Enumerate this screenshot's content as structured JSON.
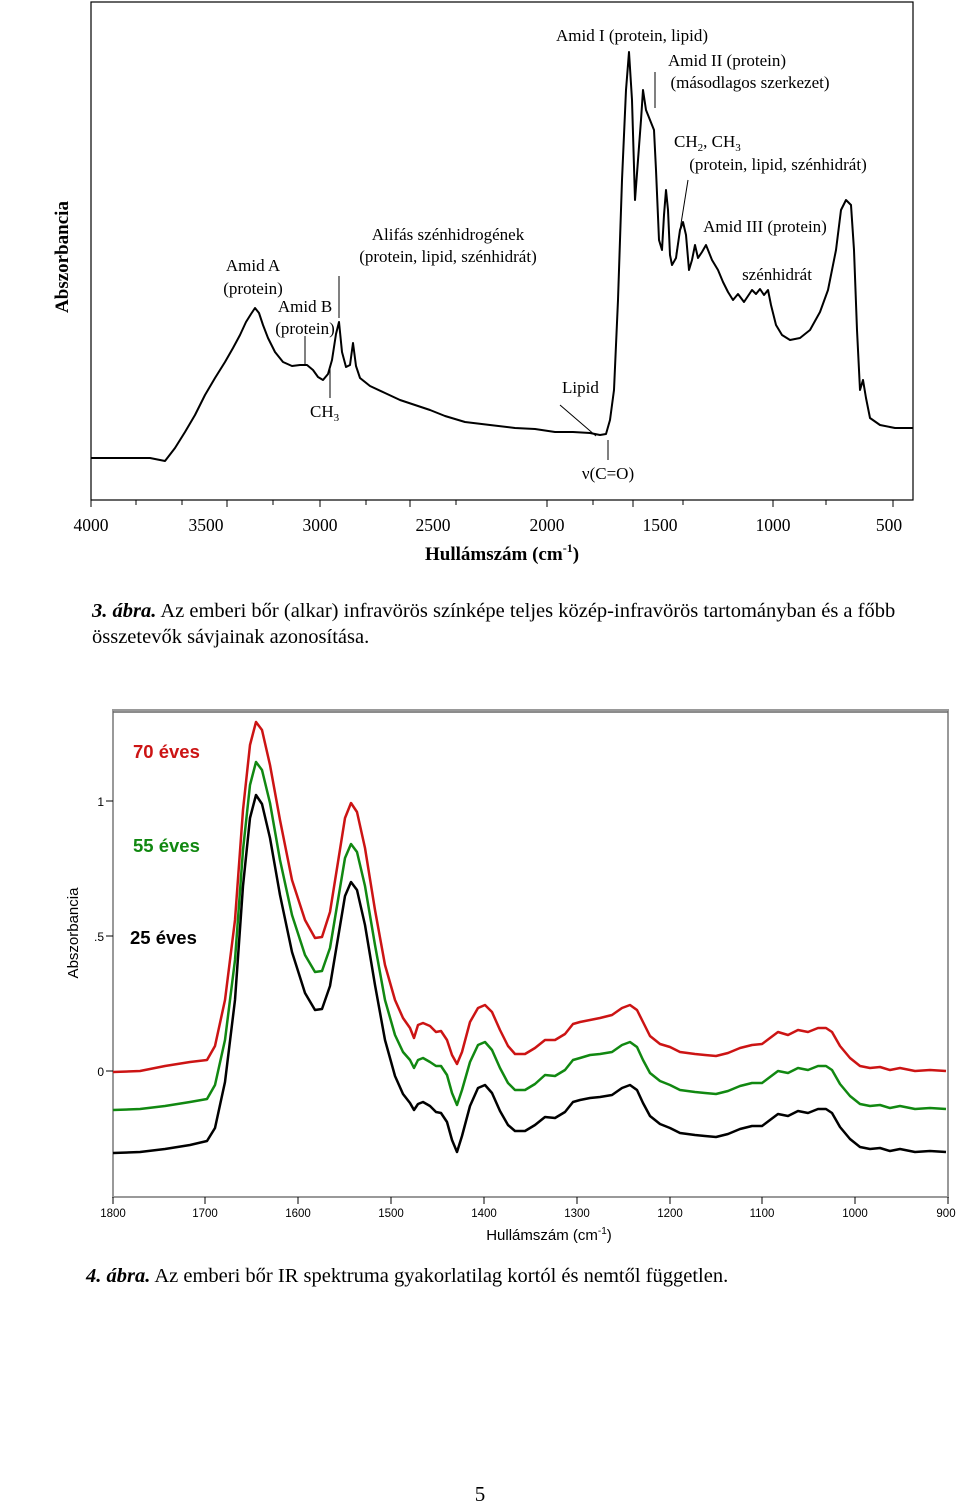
{
  "figure3": {
    "ylabel": "Abszorbancia",
    "xlabel": "Hullámszám (cm",
    "xlabel_sup": "-1",
    "xlabel_end": ")",
    "x_ticks": [
      "4000",
      "3500",
      "3000",
      "2500",
      "2000",
      "1500",
      "1000",
      "500"
    ],
    "annotations": {
      "amid_a_1": "Amid A",
      "amid_a_2": "(protein)",
      "amid_b_1": "Amid B",
      "amid_b_2": "(protein)",
      "alifas_1": "Alifás szénhidrogének",
      "alifas_2": "(protein, lipid, szénhidrát)",
      "ch3_1": "CH",
      "ch3_sub": "3",
      "lipid": "Lipid",
      "nuco": "ν(C=O)",
      "amid_i": "Amid I (protein, lipid)",
      "amid_ii_1": "Amid II (protein)",
      "amid_ii_2": "(másodlagos szerkezet)",
      "ch2_a": "CH",
      "ch2_sub": "2",
      "ch2_b": ", CH",
      "ch2_sub2": "3",
      "ch2_2": "(protein, lipid, szénhidrát)",
      "amid_iii": "Amid III (protein)",
      "szenhidrat": "szénhidrát"
    }
  },
  "caption3": {
    "label": "3. ábra.",
    "text": " Az emberi bőr (alkar) infravörös színképe teljes közép-infravörös tartományban és a főbb összetevők sávjainak azonosítása."
  },
  "figure4": {
    "ylabel": "Abszorbancia",
    "xlabel": "Hullámszám (cm",
    "xlabel_sup": "-1",
    "xlabel_end": ")",
    "y_ticks": [
      "1",
      ".5",
      "0"
    ],
    "x_ticks": [
      "1800",
      "1700",
      "1600",
      "1500",
      "1400",
      "1300",
      "1200",
      "1100",
      "1000",
      "900"
    ],
    "series_labels": [
      "70 éves",
      "55 éves",
      "25 éves"
    ],
    "colors": {
      "red": "#cc1414",
      "green": "#118811",
      "black": "#000000"
    }
  },
  "caption4": {
    "label": "4. ábra.",
    "text": " Az emberi bőr IR spektruma gyakorlatilag kortól és nemtől független."
  },
  "page_number": "5"
}
